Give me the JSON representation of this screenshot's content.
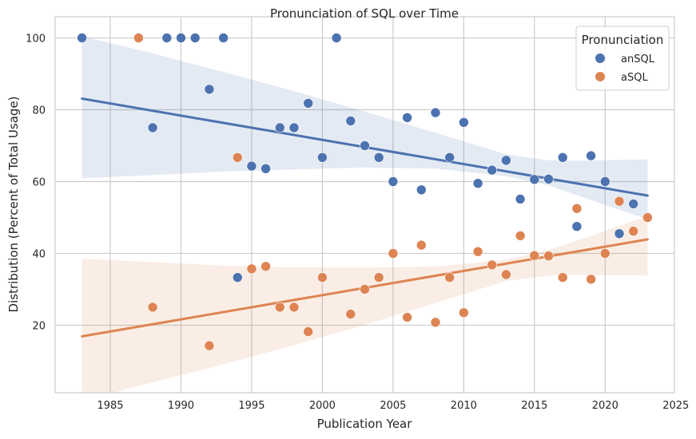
{
  "chart_data": {
    "type": "scatter",
    "title": "Pronunciation of SQL over Time",
    "xlabel": "Publication Year",
    "ylabel": "Distribution (Percent of Total Usage)",
    "xlim": [
      1981.1,
      2024.9
    ],
    "ylim": [
      1.2,
      105.9
    ],
    "xticks": [
      1985,
      1990,
      1995,
      2000,
      2005,
      2010,
      2015,
      2020,
      2025
    ],
    "yticks": [
      20,
      40,
      60,
      80,
      100
    ],
    "grid": true,
    "legend": {
      "title": "Pronunciation",
      "placement": "top-right"
    },
    "colors": {
      "anSQL": "#4c72b0",
      "aSQL": "#dd8452",
      "grid": "#cccccc",
      "axes": "#cccccc"
    },
    "series": [
      {
        "name": "anSQL",
        "x": [
          1983,
          1988,
          1989,
          1990,
          1991,
          1992,
          1993,
          1994,
          1995,
          1996,
          1997,
          1998,
          1999,
          2000,
          2001,
          2002,
          2003,
          2004,
          2005,
          2006,
          2007,
          2008,
          2009,
          2010,
          2011,
          2012,
          2013,
          2014,
          2015,
          2016,
          2017,
          2018,
          2019,
          2020,
          2021,
          2022
        ],
        "y": [
          100,
          75,
          100,
          100,
          100,
          85.7,
          100,
          33.3,
          64.3,
          63.6,
          75,
          75,
          81.8,
          66.7,
          100,
          76.9,
          70,
          66.7,
          60,
          77.8,
          57.7,
          79.2,
          66.7,
          76.5,
          59.5,
          63.2,
          65.9,
          55.1,
          60.6,
          60.7,
          66.7,
          47.5,
          67.2,
          60,
          45.5,
          53.8
        ],
        "trend": {
          "x": [
            1983,
            2023
          ],
          "y": [
            83.1,
            56.1
          ]
        },
        "ci": {
          "x": [
            1983,
            1988,
            1993,
            1998,
            2003,
            2008,
            2013,
            2016,
            2018,
            2023
          ],
          "upper": [
            100.5,
            95.7,
            90.5,
            85.2,
            79.5,
            73.6,
            67.6,
            65.9,
            65.8,
            66.2
          ],
          "lower": [
            60.9,
            61.8,
            62.8,
            63.4,
            63.9,
            63.6,
            61.5,
            58.9,
            56.2,
            49.5
          ]
        }
      },
      {
        "name": "aSQL",
        "x": [
          1987,
          1988,
          1992,
          1994,
          1995,
          1996,
          1997,
          1998,
          1999,
          2000,
          2002,
          2003,
          2004,
          2005,
          2006,
          2007,
          2008,
          2009,
          2010,
          2011,
          2012,
          2013,
          2014,
          2015,
          2016,
          2017,
          2018,
          2019,
          2020,
          2021,
          2022,
          2023
        ],
        "y": [
          100,
          25,
          14.3,
          66.7,
          35.7,
          36.4,
          25,
          25,
          18.2,
          33.3,
          23.1,
          30,
          33.3,
          40,
          22.2,
          42.3,
          20.8,
          33.3,
          23.5,
          40.5,
          36.8,
          34.1,
          44.9,
          39.4,
          39.3,
          33.3,
          52.5,
          32.8,
          40,
          54.5,
          46.2,
          50
        ],
        "trend": {
          "x": [
            1983,
            2023
          ],
          "y": [
            16.9,
            43.9
          ]
        },
        "ci": {
          "x": [
            1983,
            1988,
            1993,
            1998,
            2003,
            2008,
            2013,
            2016,
            2018,
            2023
          ],
          "upper": [
            38.5,
            37.6,
            36.6,
            36.1,
            36.0,
            36.4,
            38.2,
            41.0,
            43.5,
            50.4
          ],
          "lower": [
            -1.0,
            4.1,
            9.1,
            14.5,
            20.1,
            26.2,
            32.3,
            33.8,
            34.0,
            33.8
          ]
        }
      }
    ]
  }
}
